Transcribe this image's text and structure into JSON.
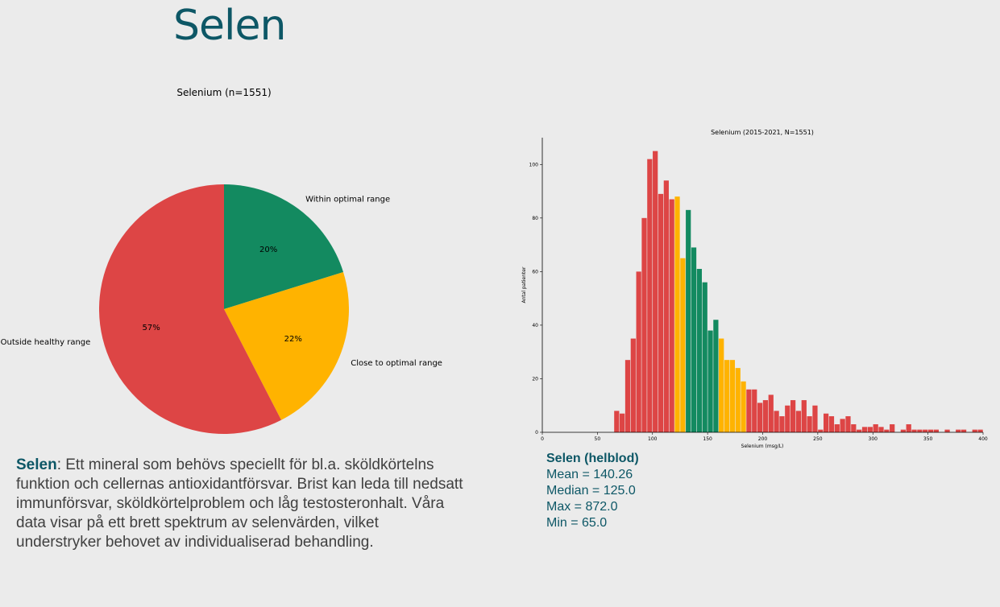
{
  "page": {
    "title": "Selen",
    "description_keyword": "Selen",
    "description_text": ": Ett mineral som behövs speciellt för bl.a. sköldkörtelns funktion och cellernas antioxidantförsvar. Brist kan leda till nedsatt immunförsvar, sköldkörtelproblem och låg testosteronhalt. Våra data visar på ett brett spektrum av selenvärden, vilket understryker behovet av individualiserad behandling."
  },
  "stats": {
    "title": "Selen (helblod)",
    "mean": "Mean = 140.26",
    "median": "Median = 125.0",
    "max": "Max = 872.0",
    "min": "Min = 65.0"
  },
  "colors": {
    "green": "#138a60",
    "yellow": "#ffb300",
    "red": "#dd4545",
    "accent": "#0d5766"
  },
  "chart_data": [
    {
      "type": "pie",
      "title": "Selenium (n=1551)",
      "slices": [
        {
          "label": "Within optimal range",
          "value": 20,
          "pct_label": "20%",
          "color": "#138a60"
        },
        {
          "label": "Close to optimal range",
          "value": 22,
          "pct_label": "22%",
          "color": "#ffb300"
        },
        {
          "label": "Outside healthy range",
          "value": 57,
          "pct_label": "57%",
          "color": "#dd4545"
        }
      ]
    },
    {
      "type": "bar",
      "title": "Selenium (2015-2021, N=1551)",
      "xlabel": "Selenium (msg/L)",
      "ylabel": "Antal patienter",
      "xlim": [
        0,
        400
      ],
      "ylim": [
        0,
        110
      ],
      "xticks": [
        0,
        50,
        100,
        150,
        200,
        250,
        300,
        350,
        400
      ],
      "yticks": [
        0,
        20,
        40,
        60,
        80,
        100
      ],
      "bin_width": 5,
      "bins": [
        [
          65,
          8,
          "red"
        ],
        [
          70,
          7,
          "red"
        ],
        [
          75,
          27,
          "red"
        ],
        [
          80,
          35,
          "red"
        ],
        [
          85,
          60,
          "red"
        ],
        [
          90,
          80,
          "red"
        ],
        [
          95,
          102,
          "red"
        ],
        [
          100,
          105,
          "red"
        ],
        [
          105,
          89,
          "red"
        ],
        [
          110,
          94,
          "red"
        ],
        [
          115,
          87,
          "red"
        ],
        [
          120,
          88,
          "yellow"
        ],
        [
          125,
          65,
          "yellow"
        ],
        [
          130,
          83,
          "green"
        ],
        [
          135,
          69,
          "green"
        ],
        [
          140,
          61,
          "green"
        ],
        [
          145,
          56,
          "green"
        ],
        [
          150,
          38,
          "green"
        ],
        [
          155,
          42,
          "green"
        ],
        [
          160,
          35,
          "yellow"
        ],
        [
          165,
          27,
          "yellow"
        ],
        [
          170,
          27,
          "yellow"
        ],
        [
          175,
          24,
          "yellow"
        ],
        [
          180,
          19,
          "yellow"
        ],
        [
          185,
          16,
          "red"
        ],
        [
          190,
          16,
          "red"
        ],
        [
          195,
          11,
          "red"
        ],
        [
          200,
          12,
          "red"
        ],
        [
          205,
          14,
          "red"
        ],
        [
          210,
          8,
          "red"
        ],
        [
          215,
          6,
          "red"
        ],
        [
          220,
          10,
          "red"
        ],
        [
          225,
          12,
          "red"
        ],
        [
          230,
          8,
          "red"
        ],
        [
          235,
          12,
          "red"
        ],
        [
          240,
          6,
          "red"
        ],
        [
          245,
          10,
          "red"
        ],
        [
          250,
          1,
          "red"
        ],
        [
          255,
          7,
          "red"
        ],
        [
          260,
          6,
          "red"
        ],
        [
          265,
          3,
          "red"
        ],
        [
          270,
          5,
          "red"
        ],
        [
          275,
          6,
          "red"
        ],
        [
          280,
          3,
          "red"
        ],
        [
          285,
          1,
          "red"
        ],
        [
          290,
          2,
          "red"
        ],
        [
          295,
          2,
          "red"
        ],
        [
          300,
          3,
          "red"
        ],
        [
          305,
          2,
          "red"
        ],
        [
          310,
          1,
          "red"
        ],
        [
          315,
          3,
          "red"
        ],
        [
          320,
          0,
          "red"
        ],
        [
          325,
          1,
          "red"
        ],
        [
          330,
          3,
          "red"
        ],
        [
          335,
          1,
          "red"
        ],
        [
          340,
          1,
          "red"
        ],
        [
          345,
          1,
          "red"
        ],
        [
          350,
          1,
          "red"
        ],
        [
          355,
          1,
          "red"
        ],
        [
          360,
          0,
          "red"
        ],
        [
          365,
          1,
          "red"
        ],
        [
          370,
          0,
          "red"
        ],
        [
          375,
          1,
          "red"
        ],
        [
          380,
          1,
          "red"
        ],
        [
          385,
          0,
          "red"
        ],
        [
          390,
          1,
          "red"
        ],
        [
          395,
          1,
          "red"
        ]
      ]
    }
  ]
}
